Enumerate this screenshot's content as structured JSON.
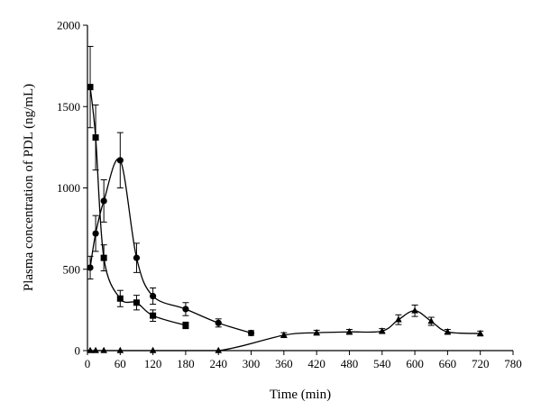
{
  "chart_data": {
    "type": "line",
    "title": "",
    "xlabel": "Time (min)",
    "ylabel": "Plasma concentration of PDL (ng/mL)",
    "xlim": [
      0,
      780
    ],
    "ylim": [
      0,
      2000
    ],
    "xticks": [
      0,
      60,
      120,
      180,
      240,
      300,
      360,
      420,
      480,
      540,
      600,
      660,
      720,
      780
    ],
    "yticks": [
      0,
      500,
      1000,
      1500,
      2000
    ],
    "grid": false,
    "legend": "none",
    "series": [
      {
        "marker": "square",
        "points": [
          {
            "x": 5,
            "y": 1620,
            "err": 250
          },
          {
            "x": 15,
            "y": 1310,
            "err": 200
          },
          {
            "x": 30,
            "y": 570,
            "err": 80
          },
          {
            "x": 60,
            "y": 320,
            "err": 50
          },
          {
            "x": 90,
            "y": 295,
            "err": 45
          },
          {
            "x": 120,
            "y": 215,
            "err": 35
          },
          {
            "x": 180,
            "y": 155,
            "err": 20
          }
        ]
      },
      {
        "marker": "circle",
        "points": [
          {
            "x": 5,
            "y": 510,
            "err": 70
          },
          {
            "x": 15,
            "y": 720,
            "err": 110
          },
          {
            "x": 30,
            "y": 920,
            "err": 130
          },
          {
            "x": 60,
            "y": 1170,
            "err": 170
          },
          {
            "x": 90,
            "y": 570,
            "err": 90
          },
          {
            "x": 120,
            "y": 335,
            "err": 50
          },
          {
            "x": 180,
            "y": 255,
            "err": 40
          },
          {
            "x": 240,
            "y": 170,
            "err": 25
          },
          {
            "x": 300,
            "y": 108,
            "err": 15
          }
        ]
      },
      {
        "marker": "triangle",
        "points": [
          {
            "x": 5,
            "y": 0,
            "err": 0
          },
          {
            "x": 15,
            "y": 0,
            "err": 0
          },
          {
            "x": 30,
            "y": 0,
            "err": 0
          },
          {
            "x": 60,
            "y": 0,
            "err": 0
          },
          {
            "x": 120,
            "y": 0,
            "err": 0
          },
          {
            "x": 240,
            "y": 0,
            "err": 0
          },
          {
            "x": 360,
            "y": 95,
            "err": 15
          },
          {
            "x": 420,
            "y": 110,
            "err": 15
          },
          {
            "x": 480,
            "y": 115,
            "err": 15
          },
          {
            "x": 540,
            "y": 120,
            "err": 15
          },
          {
            "x": 570,
            "y": 190,
            "err": 30
          },
          {
            "x": 600,
            "y": 245,
            "err": 35
          },
          {
            "x": 630,
            "y": 180,
            "err": 25
          },
          {
            "x": 660,
            "y": 115,
            "err": 15
          },
          {
            "x": 720,
            "y": 105,
            "err": 15
          }
        ]
      }
    ]
  }
}
